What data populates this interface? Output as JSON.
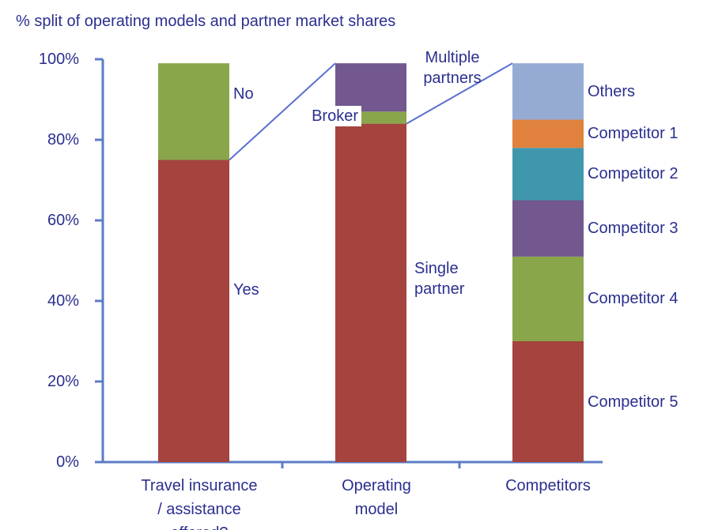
{
  "chart_data": {
    "type": "stacked_bar",
    "title": "% split of operating models and partner market shares",
    "categories": [
      "Travel insurance / assistance offered?",
      "Operating model",
      "Competitors"
    ],
    "series": [
      {
        "name": "Yes",
        "color": "#a5433f",
        "values": [
          75,
          null,
          null
        ]
      },
      {
        "name": "No",
        "color": "#8aa64b",
        "values": [
          24,
          null,
          null
        ]
      },
      {
        "name": "Single partner",
        "color": "#a5433f",
        "values": [
          null,
          84,
          null
        ]
      },
      {
        "name": "Broker",
        "color": "#8aa64b",
        "values": [
          null,
          3,
          null
        ]
      },
      {
        "name": "Multiple partners",
        "color": "#72588f",
        "values": [
          null,
          12,
          null
        ]
      },
      {
        "name": "Competitor 5",
        "color": "#a5433f",
        "values": [
          null,
          null,
          30
        ]
      },
      {
        "name": "Competitor 4",
        "color": "#8aa64b",
        "values": [
          null,
          null,
          21
        ]
      },
      {
        "name": "Competitor 3",
        "color": "#72588f",
        "values": [
          null,
          null,
          14
        ]
      },
      {
        "name": "Competitor 2",
        "color": "#3f97ae",
        "values": [
          null,
          null,
          13
        ]
      },
      {
        "name": "Competitor 1",
        "color": "#e0823d",
        "values": [
          null,
          null,
          7
        ]
      },
      {
        "name": "Others",
        "color": "#95abd4",
        "values": [
          null,
          null,
          14
        ]
      }
    ],
    "ylim": [
      0,
      100
    ],
    "yticks": [
      {
        "value": 0,
        "label": "0%"
      },
      {
        "value": 20,
        "label": "20%"
      },
      {
        "value": 40,
        "label": "40%"
      },
      {
        "value": 60,
        "label": "60%"
      },
      {
        "value": 80,
        "label": "80%"
      },
      {
        "value": 100,
        "label": "100%"
      }
    ]
  }
}
